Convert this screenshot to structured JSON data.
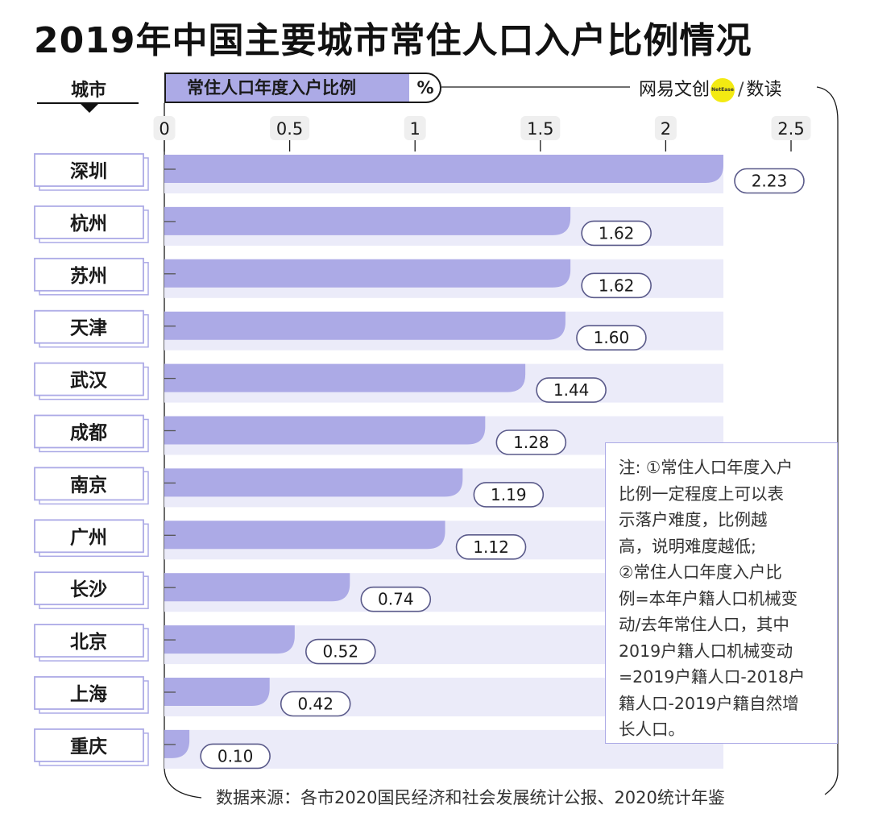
{
  "title": "2019年中国主要城市常住人口入户比例情况",
  "header": {
    "city_label": "城市",
    "metric_label": "常住人口年度入户比例",
    "metric_unit": "%"
  },
  "brand": {
    "name": "网易文创",
    "badge": "NetEase",
    "separator": "/",
    "product": "数读",
    "badge_color": "#f3ea12"
  },
  "note": {
    "lines": [
      "注: ①常住人口年度入户",
      "比例一定程度上可以表",
      "示落户难度，比例越",
      "高，说明难度越低;",
      "②常住人口年度入户比",
      "例=本年户籍人口机械变",
      "动/去年常住人口，其中",
      "2019户籍人口机械变动",
      "=2019户籍人口-2018户",
      "籍人口-2019户籍自然增",
      "长人口。"
    ]
  },
  "source": "数据来源：各市2020国民经济和社会发展统计公报、2020统计年鉴",
  "chart_data": {
    "type": "bar",
    "orientation": "horizontal",
    "title": "2019年中国主要城市常住人口入户比例情况",
    "xlabel": "常住人口年度入户比例 %",
    "ylabel": "城市",
    "xlim": [
      0,
      2.5
    ],
    "xticks": [
      0,
      0.5,
      1,
      1.5,
      2,
      2.5
    ],
    "xtick_labels": [
      "0",
      "0.5",
      "1",
      "1.5",
      "2",
      "2.5"
    ],
    "categories": [
      "深圳",
      "杭州",
      "苏州",
      "天津",
      "武汉",
      "成都",
      "南京",
      "广州",
      "长沙",
      "北京",
      "上海",
      "重庆"
    ],
    "values": [
      2.23,
      1.62,
      1.62,
      1.6,
      1.44,
      1.28,
      1.19,
      1.12,
      0.74,
      0.52,
      0.42,
      0.1
    ],
    "value_labels": [
      "2.23",
      "1.62",
      "1.62",
      "1.60",
      "1.44",
      "1.28",
      "1.19",
      "1.12",
      "0.74",
      "0.52",
      "0.42",
      "0.10"
    ],
    "bar_color": "#acaae6",
    "track_color": "#ebebf9"
  }
}
